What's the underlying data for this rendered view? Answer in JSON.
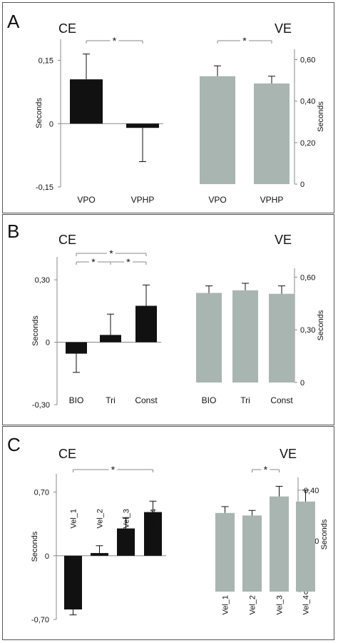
{
  "panels": [
    {
      "letter": "A",
      "left_title": "CE",
      "right_title": "VE"
    },
    {
      "letter": "B",
      "left_title": "CE",
      "right_title": "VE"
    },
    {
      "letter": "C",
      "left_title": "CE",
      "right_title": "VE"
    }
  ],
  "colors": {
    "ce_bar": "#111111",
    "ve_bar": "#a9b5b0",
    "axis": "#888888"
  },
  "chart_data": [
    {
      "panel": "A",
      "title": "CE",
      "type": "bar",
      "ylabel": "Seconds",
      "categories": [
        "VPO",
        "VPHP"
      ],
      "values": [
        0.105,
        -0.01
      ],
      "errors": [
        0.06,
        0.08
      ],
      "ylim": [
        -0.15,
        0.2
      ],
      "yticks": [
        "0,15",
        "0",
        "-0,15"
      ],
      "ytick_values": [
        0.15,
        0,
        -0.15
      ],
      "significance": [
        {
          "from": "VPO",
          "to": "VPHP",
          "label": "*"
        }
      ],
      "bar_color": "#111111",
      "xlabel_rotated": false
    },
    {
      "panel": "A",
      "title": "VE",
      "type": "bar",
      "ylabel": "Seconds",
      "categories": [
        "VPO",
        "VPHP"
      ],
      "values": [
        0.52,
        0.485
      ],
      "errors": [
        0.05,
        0.035
      ],
      "ylim": [
        0,
        0.65
      ],
      "yticks": [
        "0,60",
        "0,40",
        "0,20",
        "0"
      ],
      "ytick_values": [
        0.6,
        0.4,
        0.2,
        0
      ],
      "significance": [
        {
          "from": "VPO",
          "to": "VPHP",
          "label": "*"
        }
      ],
      "bar_color": "#a9b5b0",
      "xlabel_rotated": false
    },
    {
      "panel": "B",
      "title": "CE",
      "type": "bar",
      "ylabel": "Seconds",
      "categories": [
        "BIO",
        "Tri",
        "Const"
      ],
      "values": [
        -0.055,
        0.035,
        0.175
      ],
      "errors": [
        0.09,
        0.1,
        0.1
      ],
      "ylim": [
        -0.3,
        0.41
      ],
      "yticks": [
        "0,30",
        "0",
        "-0,30"
      ],
      "ytick_values": [
        0.3,
        0,
        -0.3
      ],
      "significance": [
        {
          "from": "BIO",
          "to": "Const",
          "label": "*"
        },
        {
          "from": "BIO",
          "to": "Tri",
          "label": "*"
        },
        {
          "from": "Tri",
          "to": "Const",
          "label": "*"
        }
      ],
      "bar_color": "#111111",
      "xlabel_rotated": false
    },
    {
      "panel": "B",
      "title": "VE",
      "type": "bar",
      "ylabel": "Seconds",
      "categories": [
        "BIO",
        "Tri",
        "Const"
      ],
      "values": [
        0.51,
        0.525,
        0.505
      ],
      "errors": [
        0.04,
        0.04,
        0.045
      ],
      "ylim": [
        0,
        0.65
      ],
      "yticks": [
        "0,60",
        "0,30",
        "0"
      ],
      "ytick_values": [
        0.6,
        0.3,
        0
      ],
      "significance": [],
      "bar_color": "#a9b5b0",
      "xlabel_rotated": false
    },
    {
      "panel": "C",
      "title": "CE",
      "type": "bar",
      "ylabel": "Seconds",
      "categories": [
        "Vel_1",
        "Vel_2",
        "Vel_3",
        "Vel_4"
      ],
      "values": [
        -0.59,
        0.03,
        0.3,
        0.48
      ],
      "errors": [
        0.06,
        0.08,
        0.12,
        0.12
      ],
      "ylim": [
        -0.7,
        0.9
      ],
      "yticks": [
        "0,70",
        "0",
        "-0,70"
      ],
      "ytick_values": [
        0.7,
        0,
        -0.7
      ],
      "significance": [
        {
          "from": "Vel_1",
          "to": "Vel_4",
          "label": "*"
        }
      ],
      "bar_color": "#111111",
      "xlabel_rotated": true
    },
    {
      "panel": "C",
      "title": "VE",
      "type": "bar",
      "ylabel": "Seconds",
      "categories": [
        "Vel_1",
        "Vel_2",
        "Vel_3",
        "Vel_4"
      ],
      "values": [
        0.31,
        0.3,
        0.375,
        0.355
      ],
      "errors": [
        0.025,
        0.02,
        0.04,
        0.045
      ],
      "ylim": [
        0,
        0.45
      ],
      "yticks": [
        "0,40",
        "0,20",
        "0"
      ],
      "ytick_values": [
        0.4,
        0.2,
        0
      ],
      "significance": [
        {
          "from": "Vel_2",
          "to": "Vel_3",
          "label": "*"
        }
      ],
      "bar_color": "#a9b5b0",
      "xlabel_rotated": true
    }
  ]
}
